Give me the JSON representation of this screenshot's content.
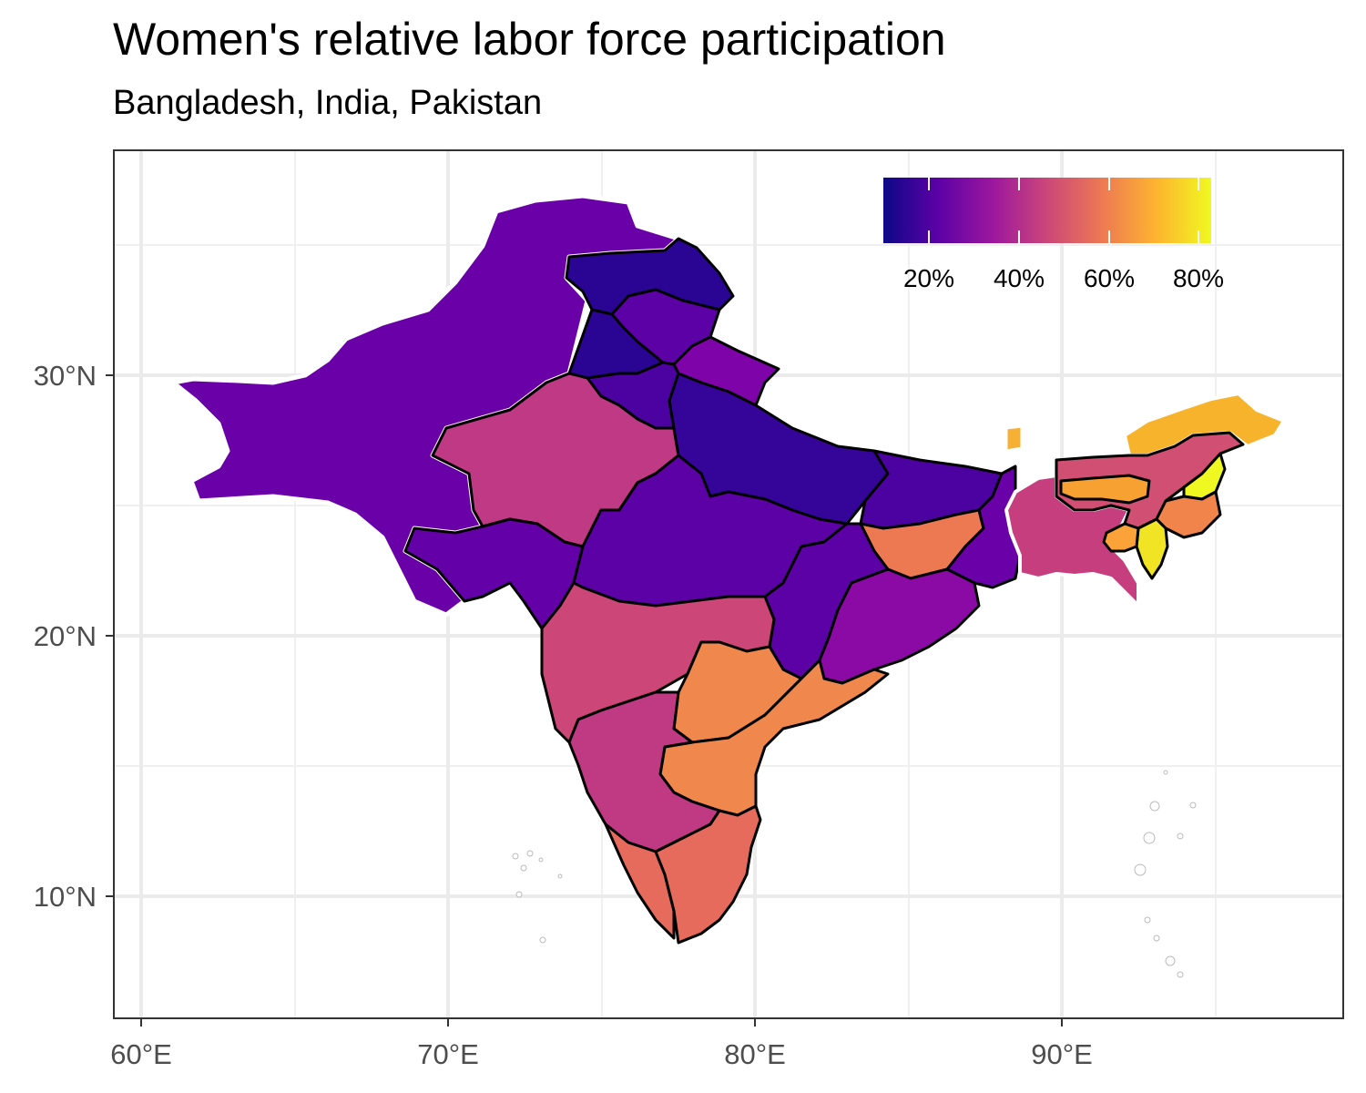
{
  "title": "Women's relative labor force participation",
  "subtitle": "Bangladesh, India, Pakistan",
  "x_axis": {
    "ticks": [
      "60°E",
      "70°E",
      "80°E",
      "90°E"
    ]
  },
  "y_axis": {
    "ticks": [
      "30°N",
      "20°N",
      "10°N"
    ]
  },
  "legend": {
    "labels": [
      "20%",
      "40%",
      "60%",
      "80%"
    ],
    "palette": "plasma",
    "stops": [
      "#0d0887",
      "#5c01a6",
      "#9c179e",
      "#cc4778",
      "#ed7953",
      "#fdb42f",
      "#f0f921"
    ]
  },
  "regions": [
    {
      "name": "Pakistan",
      "value": "low-mid",
      "color": "#6a00a8"
    },
    {
      "name": "Jammu & Kashmir",
      "value": "low",
      "color": "#2a0593"
    },
    {
      "name": "Punjab (India)",
      "value": "low",
      "color": "#2a0593"
    },
    {
      "name": "Himachal Pradesh",
      "value": "low-mid",
      "color": "#5c01a6"
    },
    {
      "name": "Uttarakhand",
      "value": "mid",
      "color": "#7e03a8"
    },
    {
      "name": "Haryana",
      "value": "low-mid",
      "color": "#4c02a1"
    },
    {
      "name": "Rajasthan",
      "value": "mid",
      "color": "#bf3984"
    },
    {
      "name": "Uttar Pradesh",
      "value": "low",
      "color": "#350498"
    },
    {
      "name": "Gujarat",
      "value": "low-mid",
      "color": "#6300a7"
    },
    {
      "name": "Madhya Pradesh",
      "value": "low-mid",
      "color": "#5c01a6"
    },
    {
      "name": "Bihar",
      "value": "low",
      "color": "#4c02a1"
    },
    {
      "name": "Jharkhand",
      "value": "high",
      "color": "#ed7953"
    },
    {
      "name": "West Bengal",
      "value": "low-mid",
      "color": "#6a00a8"
    },
    {
      "name": "Chhattisgarh",
      "value": "low-mid",
      "color": "#5c01a6"
    },
    {
      "name": "Odisha",
      "value": "mid",
      "color": "#8b0aa5"
    },
    {
      "name": "Maharashtra",
      "value": "mid-high",
      "color": "#cc4778"
    },
    {
      "name": "Telangana",
      "value": "high",
      "color": "#f0884e"
    },
    {
      "name": "Andhra Pradesh",
      "value": "high",
      "color": "#f0884e"
    },
    {
      "name": "Karnataka",
      "value": "mid-high",
      "color": "#c03a83"
    },
    {
      "name": "Kerala",
      "value": "high",
      "color": "#e66b5d"
    },
    {
      "name": "Tamil Nadu",
      "value": "high",
      "color": "#e66b5d"
    },
    {
      "name": "Bangladesh",
      "value": "mid-high",
      "color": "#c73e7f"
    },
    {
      "name": "Sikkim",
      "value": "very-high",
      "color": "#f6b033"
    },
    {
      "name": "Arunachal Pradesh",
      "value": "very-high",
      "color": "#f7b32c"
    },
    {
      "name": "Assam",
      "value": "mid-high",
      "color": "#d14f73"
    },
    {
      "name": "Meghalaya",
      "value": "very-high",
      "color": "#f8a133"
    },
    {
      "name": "Nagaland",
      "value": "top",
      "color": "#eff821"
    },
    {
      "name": "Manipur",
      "value": "high",
      "color": "#f1844b"
    },
    {
      "name": "Mizoram",
      "value": "top",
      "color": "#f0e424"
    },
    {
      "name": "Tripura",
      "value": "high",
      "color": "#fba238"
    }
  ]
}
